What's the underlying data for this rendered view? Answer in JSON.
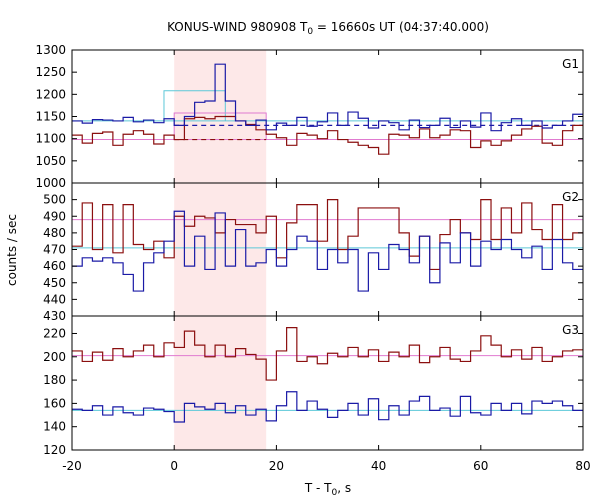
{
  "title": "KONUS-WIND 980908 T",
  "title_sub": "0",
  "title_rest": " = 16660s UT (04:37:40.000)",
  "xlabel_main": "T - T",
  "xlabel_sub": "0",
  "xlabel_rest": ", s",
  "ylabel": "counts / sec",
  "colors": {
    "series_a": "#1a1aa6",
    "series_b": "#8b0f0f",
    "fit_a": "#5cc8d8",
    "fit_b": "#e07ad0",
    "shade": "#fde8e8"
  },
  "chart_data": {
    "type": "line",
    "xlim": [
      -20,
      80
    ],
    "x_ticks": [
      "-20",
      "0",
      "20",
      "40",
      "60",
      "80"
    ],
    "x_tick_values": [
      -20,
      0,
      20,
      40,
      60,
      80
    ],
    "shaded_interval": [
      0,
      18
    ],
    "bin_edges": [
      -20,
      -18,
      -16,
      -14,
      -12,
      -10,
      -8,
      -6,
      -4,
      -2,
      0,
      2,
      4,
      6,
      8,
      10,
      12,
      14,
      16,
      18,
      20,
      22,
      24,
      26,
      28,
      30,
      32,
      34,
      36,
      38,
      40,
      42,
      44,
      46,
      48,
      50,
      52,
      54,
      56,
      58,
      60,
      62,
      64,
      66,
      68,
      70,
      72,
      74,
      76,
      78,
      80
    ],
    "panels": [
      {
        "label": "G1",
        "ylim": [
          1000,
          1300
        ],
        "y_ticks": [
          "1000",
          "1050",
          "1100",
          "1150",
          "1200",
          "1250",
          "1300"
        ],
        "y_tick_values": [
          1000,
          1050,
          1100,
          1150,
          1200,
          1250,
          1300
        ],
        "series_a": [
          1140,
          1135,
          1143,
          1142,
          1140,
          1148,
          1138,
          1142,
          1136,
          1145,
          1130,
          1150,
          1182,
          1185,
          1268,
          1185,
          1140,
          1130,
          1142,
          1120,
          1135,
          1130,
          1148,
          1128,
          1138,
          1158,
          1130,
          1160,
          1146,
          1124,
          1140,
          1136,
          1120,
          1142,
          1125,
          1130,
          1146,
          1125,
          1140,
          1126,
          1158,
          1118,
          1136,
          1145,
          1130,
          1140,
          1124,
          1130,
          1140,
          1155
        ],
        "series_b": [
          1108,
          1090,
          1112,
          1115,
          1085,
          1110,
          1118,
          1110,
          1088,
          1108,
          1098,
          1145,
          1148,
          1145,
          1150,
          1150,
          1140,
          1132,
          1120,
          1110,
          1102,
          1085,
          1112,
          1108,
          1100,
          1118,
          1098,
          1092,
          1085,
          1080,
          1065,
          1110,
          1108,
          1102,
          1122,
          1102,
          1108,
          1120,
          1118,
          1080,
          1095,
          1085,
          1095,
          1108,
          1122,
          1128,
          1090,
          1085,
          1118,
          1130
        ],
        "fit_boxes": [
          {
            "color_key": "fit_a",
            "x0": -2,
            "x1": 10,
            "y": 1208
          },
          {
            "color_key": "fit_b",
            "x0": 0,
            "x1": 18,
            "y": 1158
          }
        ],
        "fit_a": {
          "solid": [
            [
              -20,
              1140
            ],
            [
              -2,
              1140
            ],
            [
              18,
              1132
            ],
            [
              80,
              1134
            ]
          ],
          "dashed": [
            [
              0,
              1128
            ],
            [
              18,
              1128
            ]
          ]
        },
        "fit_b": {
          "solid": [
            [
              -20,
              1098
            ],
            [
              0,
              1098
            ],
            [
              18,
              1098
            ],
            [
              80,
              1098
            ]
          ],
          "dashed": [
            [
              0,
              1098
            ],
            [
              18,
              1098
            ]
          ]
        },
        "dash_b_x": [
          0,
          18
        ],
        "dash_b_y": 1098,
        "dash_a_x": [
          0,
          80
        ],
        "dash_a_y": 1130
      },
      {
        "label": "G2",
        "ylim": [
          430,
          510
        ],
        "y_ticks": [
          "430",
          "440",
          "450",
          "460",
          "470",
          "480",
          "490",
          "500"
        ],
        "y_tick_values": [
          430,
          440,
          450,
          460,
          470,
          480,
          490,
          500
        ],
        "series_a": [
          460,
          465,
          463,
          465,
          462,
          455,
          445,
          462,
          468,
          475,
          493,
          460,
          478,
          458,
          492,
          460,
          482,
          460,
          462,
          470,
          460,
          470,
          478,
          475,
          458,
          470,
          462,
          470,
          445,
          468,
          458,
          473,
          470,
          462,
          478,
          450,
          474,
          462,
          480,
          460,
          475,
          470,
          476,
          470,
          465,
          472,
          458,
          476,
          462,
          458
        ],
        "series_b": [
          472,
          498,
          470,
          497,
          468,
          497,
          473,
          470,
          475,
          465,
          490,
          484,
          490,
          489,
          480,
          488,
          485,
          485,
          480,
          490,
          465,
          486,
          497,
          497,
          475,
          500,
          470,
          478,
          495,
          495,
          495,
          495,
          480,
          466,
          478,
          458,
          479,
          488,
          480,
          476,
          500,
          476,
          495,
          480,
          498,
          482,
          476,
          497,
          476,
          480
        ],
        "fit_a_y": 471,
        "fit_b_y": 488
      },
      {
        "label": "G3",
        "ylim": [
          120,
          235
        ],
        "y_ticks": [
          "120",
          "140",
          "160",
          "180",
          "200",
          "220"
        ],
        "y_tick_values": [
          120,
          140,
          160,
          180,
          200,
          220
        ],
        "series_a": [
          155,
          154,
          158,
          150,
          157,
          152,
          150,
          156,
          155,
          153,
          144,
          160,
          157,
          155,
          160,
          152,
          158,
          150,
          155,
          145,
          158,
          170,
          154,
          162,
          155,
          148,
          154,
          160,
          150,
          164,
          146,
          158,
          150,
          162,
          166,
          154,
          156,
          149,
          166,
          152,
          150,
          160,
          154,
          160,
          151,
          162,
          160,
          162,
          158,
          154
        ],
        "series_b": [
          205,
          196,
          204,
          197,
          207,
          200,
          205,
          210,
          200,
          212,
          208,
          222,
          210,
          200,
          210,
          200,
          207,
          202,
          198,
          180,
          205,
          225,
          196,
          200,
          194,
          203,
          200,
          208,
          200,
          206,
          196,
          204,
          200,
          210,
          195,
          200,
          208,
          198,
          196,
          205,
          218,
          210,
          200,
          206,
          198,
          208,
          196,
          200,
          205,
          206
        ],
        "fit_a_y": 154,
        "fit_b_y": 201
      }
    ]
  }
}
